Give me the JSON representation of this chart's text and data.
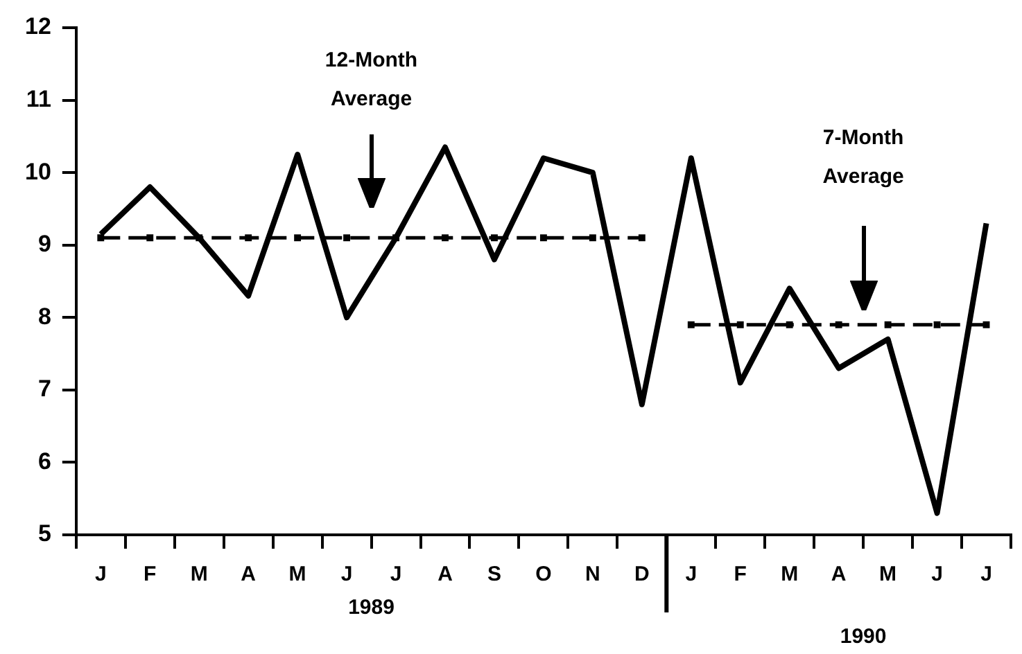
{
  "chart_data": {
    "type": "line",
    "categories": [
      "J",
      "F",
      "M",
      "A",
      "M",
      "J",
      "J",
      "A",
      "S",
      "O",
      "N",
      "D",
      "J",
      "F",
      "M",
      "A",
      "M",
      "J",
      "J"
    ],
    "series": [
      {
        "color": "#000000",
        "values": [
          9.15,
          9.8,
          9.1,
          8.3,
          10.25,
          8.0,
          9.1,
          10.35,
          8.8,
          10.2,
          10.0,
          6.8,
          10.2,
          7.1,
          8.4,
          7.3,
          7.7,
          5.3,
          9.3
        ]
      },
      {
        "color": "#000000",
        "line_style": "dashed",
        "marker": "square",
        "values": [
          9.1,
          9.1,
          9.1,
          9.1,
          9.1,
          9.1,
          9.1,
          9.1,
          9.1,
          9.1,
          9.1,
          9.1,
          null,
          null,
          null,
          null,
          null,
          null,
          null
        ]
      },
      {
        "color": "#000000",
        "line_style": "dashed",
        "marker": "square",
        "values": [
          null,
          null,
          null,
          null,
          null,
          null,
          null,
          null,
          null,
          null,
          null,
          null,
          7.9,
          7.9,
          7.9,
          7.9,
          7.9,
          7.9,
          7.9
        ]
      }
    ],
    "ylim": [
      5,
      12
    ],
    "yticks": [
      5,
      6,
      7,
      8,
      9,
      10,
      11,
      12
    ],
    "grid": false,
    "legend": false,
    "marker": "none",
    "line_style": "solid",
    "annotations": [
      "12-Month Average",
      "7-Month Average",
      "1989",
      "1990"
    ]
  }
}
